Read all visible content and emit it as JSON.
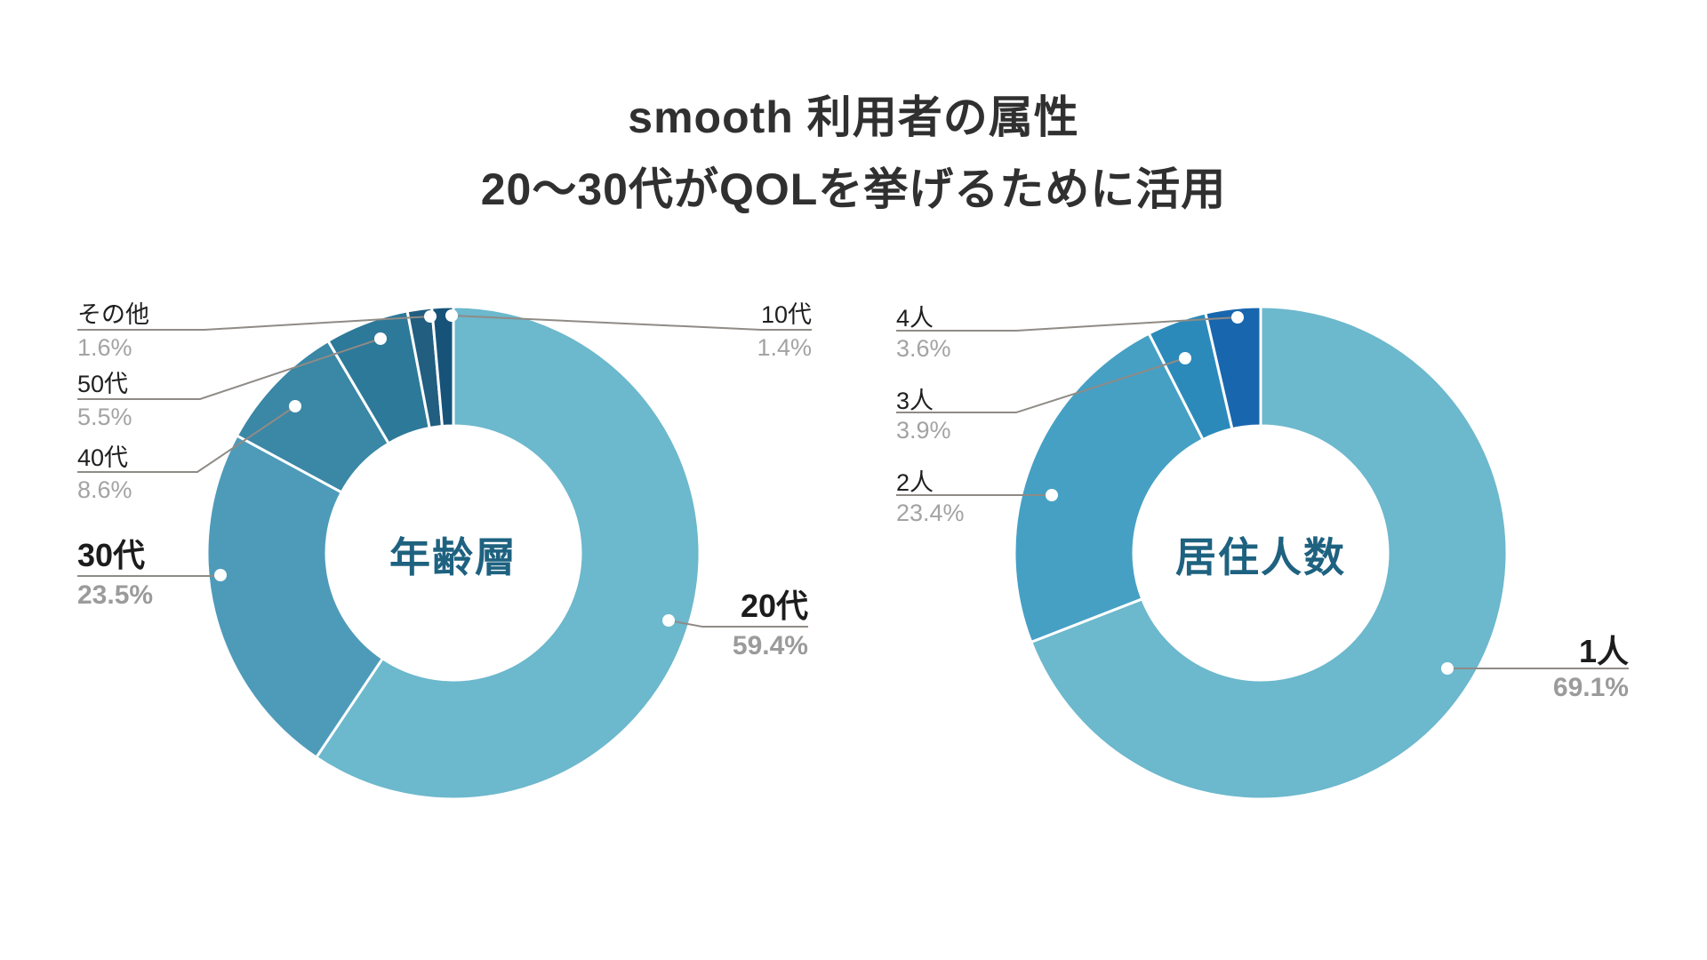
{
  "title": {
    "line1": "smooth 利用者の属性",
    "line2": "20〜30代がQOLを挙げるために活用"
  },
  "colors": {
    "background": "#ffffff",
    "title_text": "#303030",
    "center_label_text": "#1e6280",
    "label_text": "#1f1f1f",
    "value_text": "#a3a3a3",
    "leader_line": "#8f8b86"
  },
  "chart_data": [
    {
      "type": "pie",
      "variant": "donut",
      "center_label": "年齢層",
      "categories": [
        "20代",
        "30代",
        "40代",
        "50代",
        "その他",
        "10代"
      ],
      "values": [
        59.4,
        23.5,
        8.6,
        5.5,
        1.6,
        1.4
      ],
      "value_labels": [
        "59.4%",
        "23.5%",
        "8.6%",
        "5.5%",
        "1.6%",
        "1.4%"
      ],
      "colors": [
        "#6cb8cd",
        "#4e9bb9",
        "#3a87a6",
        "#2d7999",
        "#215e80",
        "#175379"
      ],
      "emphasized": [
        "20代",
        "30代"
      ],
      "start_angle": "12-oclock",
      "direction": "clockwise",
      "labels_position": "outside-callouts",
      "legend": "none"
    },
    {
      "type": "pie",
      "variant": "donut",
      "center_label": "居住人数",
      "categories": [
        "1人",
        "2人",
        "3人",
        "4人"
      ],
      "values": [
        69.1,
        23.4,
        3.9,
        3.6
      ],
      "value_labels": [
        "69.1%",
        "23.4%",
        "3.9%",
        "3.6%"
      ],
      "colors": [
        "#6cb8cd",
        "#46a0c4",
        "#2b8aba",
        "#1866ae"
      ],
      "emphasized": [
        "1人"
      ],
      "start_angle": "12-oclock",
      "direction": "clockwise",
      "labels_position": "outside-callouts",
      "legend": "none"
    }
  ]
}
